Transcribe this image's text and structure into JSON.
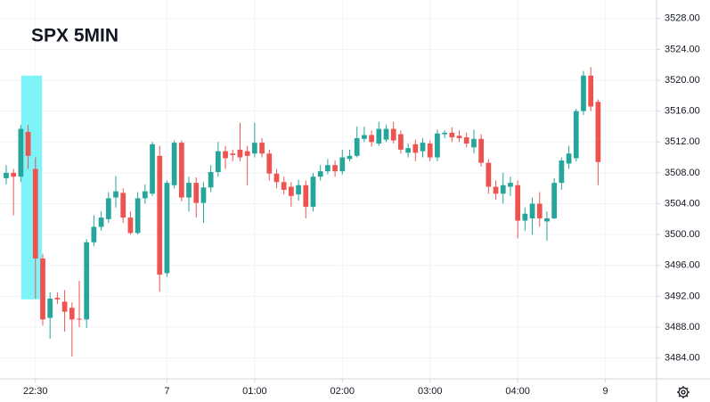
{
  "chart_data": {
    "type": "candlestick",
    "title": "SPX 5MIN",
    "open": [
      3507.3,
      3508.0,
      3507.5,
      3513.3,
      3508.5,
      3496.9,
      3489.2,
      3491.8,
      3491.3,
      3490.5,
      3489.1,
      3489.0,
      3499.0,
      3501.0,
      3502.0,
      3504.8,
      3505.4,
      3502.2,
      3500.2,
      3504.7,
      3505.3,
      3510.2,
      3495.0,
      3506.4,
      3511.9,
      3504.8,
      3506.7,
      3504.1,
      3506.1,
      3508.1,
      3510.8,
      3510.5,
      3511.0,
      3510.8,
      3510.5,
      3511.9,
      3510.5,
      3507.9,
      3506.8,
      3506.2,
      3505.2,
      3506.4,
      3503.6,
      3507.5,
      3508.2,
      3509.0,
      3508.2,
      3509.8,
      3510.2,
      3512.4,
      3512.9,
      3511.8,
      3512.3,
      3513.7,
      3513.0,
      3510.6,
      3511.7,
      3510.8,
      3511.8,
      3510.0,
      3513.0,
      3513.2,
      3512.8,
      3512.6,
      3511.3,
      3512.4,
      3509.3,
      3506.2,
      3505.3,
      3506.2,
      3506.4,
      3501.8,
      3502.1,
      3504.0,
      3501.7,
      3502.1,
      3506.7,
      3509.2,
      3509.9,
      3516.0,
      3520.6,
      3517.2
    ],
    "high": [
      3509.0,
      3508.5,
      3514.2,
      3514.2,
      3510.0,
      3497.5,
      3492.5,
      3492.5,
      3492.8,
      3491.2,
      3494.0,
      3499.4,
      3502.5,
      3503.0,
      3505.5,
      3507.6,
      3506.0,
      3503.0,
      3505.5,
      3506.5,
      3512.0,
      3511.5,
      3507.0,
      3512.2,
      3512.2,
      3507.5,
      3507.4,
      3506.8,
      3509.0,
      3512.0,
      3511.5,
      3511.0,
      3514.5,
      3511.5,
      3514.5,
      3512.5,
      3511.0,
      3508.5,
      3507.5,
      3506.8,
      3507.1,
      3507.0,
      3508.0,
      3509.0,
      3509.8,
      3509.6,
      3511.0,
      3511.0,
      3514.0,
      3514.0,
      3513.5,
      3514.6,
      3514.2,
      3514.6,
      3513.5,
      3511.8,
      3512.3,
      3512.5,
      3512.2,
      3513.6,
      3513.5,
      3513.9,
      3513.5,
      3513.2,
      3513.6,
      3513.0,
      3509.8,
      3507.0,
      3508.0,
      3507.5,
      3507.0,
      3503.5,
      3504.8,
      3505.5,
      3503.0,
      3507.3,
      3510.0,
      3511.5,
      3516.3,
      3521.2,
      3521.7,
      3517.5
    ],
    "low": [
      3506.5,
      3502.5,
      3506.8,
      3508.5,
      3491.7,
      3488.2,
      3486.5,
      3491.0,
      3487.4,
      3484.2,
      3488.0,
      3487.9,
      3498.5,
      3500.5,
      3501.5,
      3503.5,
      3501.5,
      3500.0,
      3500.0,
      3504.0,
      3505.0,
      3492.6,
      3494.5,
      3506.0,
      3504.3,
      3503.0,
      3502.2,
      3501.5,
      3505.5,
      3507.5,
      3508.5,
      3509.5,
      3509.5,
      3506.4,
      3510.0,
      3510.0,
      3507.0,
      3506.0,
      3505.2,
      3503.6,
      3504.4,
      3502.1,
      3503.0,
      3507.0,
      3507.8,
      3507.5,
      3507.8,
      3509.5,
      3510.0,
      3512.0,
      3511.4,
      3511.5,
      3512.0,
      3511.8,
      3510.5,
      3510.0,
      3509.5,
      3510.0,
      3509.5,
      3509.5,
      3512.5,
      3512.0,
      3512.0,
      3511.3,
      3510.5,
      3508.8,
      3505.3,
      3504.5,
      3504.0,
      3505.0,
      3499.5,
      3500.5,
      3500.0,
      3501.0,
      3499.2,
      3502.0,
      3505.8,
      3508.5,
      3509.5,
      3515.5,
      3516.0,
      3506.4
    ],
    "close": [
      3508.0,
      3507.5,
      3513.7,
      3510.2,
      3496.9,
      3489.0,
      3491.7,
      3491.6,
      3490.0,
      3489.0,
      3489.0,
      3499.0,
      3501.0,
      3502.2,
      3504.7,
      3505.6,
      3502.2,
      3500.2,
      3504.7,
      3505.6,
      3511.7,
      3494.8,
      3506.7,
      3511.9,
      3504.8,
      3506.7,
      3504.1,
      3506.1,
      3508.1,
      3510.8,
      3509.9,
      3510.3,
      3510.0,
      3510.2,
      3511.9,
      3510.5,
      3507.9,
      3506.8,
      3505.8,
      3505.0,
      3506.4,
      3503.6,
      3507.5,
      3508.2,
      3509.0,
      3508.2,
      3510.0,
      3510.2,
      3512.5,
      3512.9,
      3512.0,
      3513.7,
      3513.7,
      3512.2,
      3511.0,
      3511.2,
      3510.6,
      3511.9,
      3510.0,
      3513.1,
      3513.2,
      3512.6,
      3512.5,
      3511.8,
      3512.4,
      3509.3,
      3506.2,
      3505.3,
      3506.4,
      3506.7,
      3501.8,
      3502.7,
      3504.0,
      3502.1,
      3502.1,
      3506.7,
      3509.6,
      3510.5,
      3516.0,
      3520.6,
      3516.6,
      3509.4
    ],
    "up_color": "#26a69a",
    "down_color": "#ef5350",
    "xlim": [
      -0.85,
      89
    ],
    "xticks": [
      {
        "value": 4,
        "label": "22:30"
      },
      {
        "value": 22,
        "label": "7"
      },
      {
        "value": 34,
        "label": "01:00"
      },
      {
        "value": 46,
        "label": "02:00"
      },
      {
        "value": 58,
        "label": "03:00"
      },
      {
        "value": 70,
        "label": "04:00"
      },
      {
        "value": 82,
        "label": "9"
      }
    ],
    "ylim": [
      3481.3,
      3530.4
    ],
    "yticks": [
      {
        "value": 3484,
        "label": "3484.00"
      },
      {
        "value": 3488,
        "label": "3488.00"
      },
      {
        "value": 3492,
        "label": "3492.00"
      },
      {
        "value": 3496,
        "label": "3496.00"
      },
      {
        "value": 3500,
        "label": "3500.00"
      },
      {
        "value": 3504,
        "label": "3504.00"
      },
      {
        "value": 3508,
        "label": "3508.00"
      },
      {
        "value": 3512,
        "label": "3512.00"
      },
      {
        "value": 3516,
        "label": "3516.00"
      },
      {
        "value": 3520,
        "label": "3520.00"
      },
      {
        "value": 3524,
        "label": "3524.00"
      },
      {
        "value": 3528,
        "label": "3528.00"
      }
    ],
    "grid": true,
    "highlight": {
      "x": [
        2.05,
        4.9
      ],
      "y": [
        3491.6,
        3520.6
      ],
      "color": "#7ff4f8"
    }
  }
}
